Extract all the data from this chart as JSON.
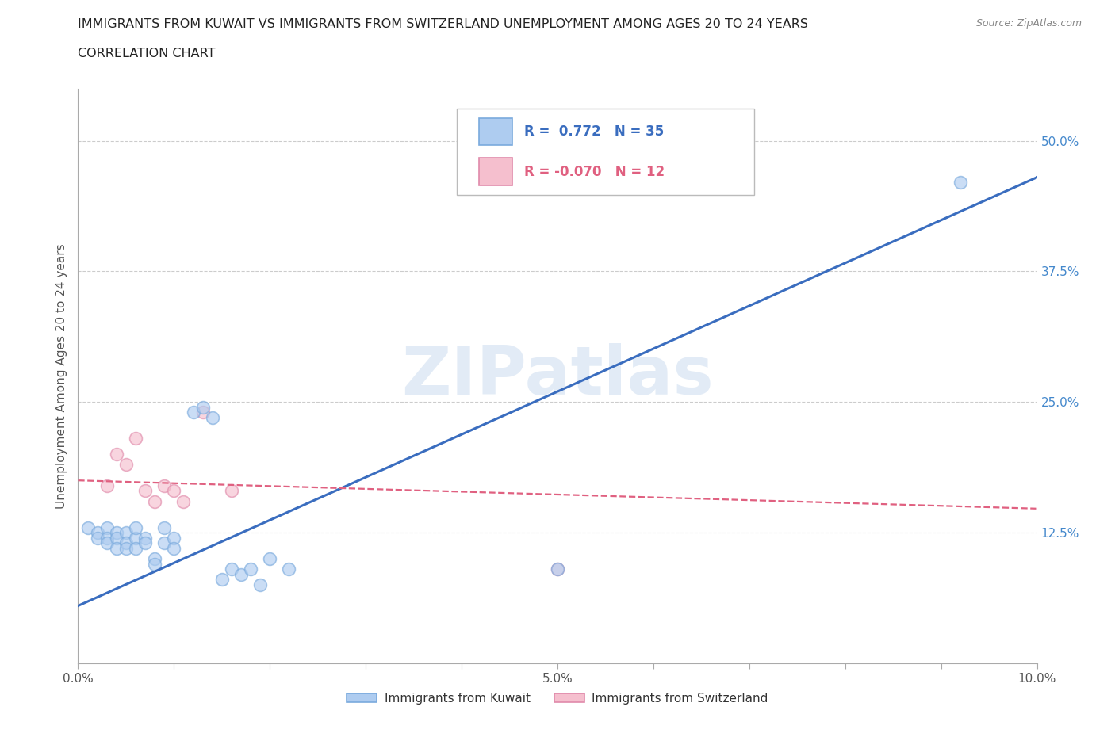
{
  "title_line1": "IMMIGRANTS FROM KUWAIT VS IMMIGRANTS FROM SWITZERLAND UNEMPLOYMENT AMONG AGES 20 TO 24 YEARS",
  "title_line2": "CORRELATION CHART",
  "source": "Source: ZipAtlas.com",
  "ylabel": "Unemployment Among Ages 20 to 24 years",
  "xlim": [
    0.0,
    0.1
  ],
  "ylim": [
    0.0,
    0.55
  ],
  "xticks": [
    0.0,
    0.01,
    0.02,
    0.03,
    0.04,
    0.05,
    0.06,
    0.07,
    0.08,
    0.09,
    0.1
  ],
  "yticks": [
    0.0,
    0.125,
    0.25,
    0.375,
    0.5
  ],
  "ytick_labels": [
    "",
    "12.5%",
    "25.0%",
    "37.5%",
    "50.0%"
  ],
  "xtick_labels": [
    "0.0%",
    "",
    "",
    "",
    "",
    "5.0%",
    "",
    "",
    "",
    "",
    "10.0%"
  ],
  "kuwait_color": "#aeccf0",
  "kuwait_edge_color": "#7aaadd",
  "switzerland_color": "#f5bfce",
  "switzerland_edge_color": "#e08aaa",
  "kuwait_line_color": "#3a6dbf",
  "switzerland_line_color": "#e06080",
  "r_kuwait": 0.772,
  "n_kuwait": 35,
  "r_switzerland": -0.07,
  "n_switzerland": 12,
  "watermark": "ZIPatlas",
  "kuwait_scatter_x": [
    0.001,
    0.002,
    0.002,
    0.003,
    0.003,
    0.003,
    0.004,
    0.004,
    0.004,
    0.005,
    0.005,
    0.005,
    0.006,
    0.006,
    0.006,
    0.007,
    0.007,
    0.008,
    0.008,
    0.009,
    0.009,
    0.01,
    0.01,
    0.012,
    0.013,
    0.014,
    0.015,
    0.016,
    0.017,
    0.018,
    0.019,
    0.02,
    0.022,
    0.05,
    0.092
  ],
  "kuwait_scatter_y": [
    0.13,
    0.125,
    0.12,
    0.13,
    0.12,
    0.115,
    0.125,
    0.12,
    0.11,
    0.125,
    0.115,
    0.11,
    0.12,
    0.11,
    0.13,
    0.12,
    0.115,
    0.1,
    0.095,
    0.13,
    0.115,
    0.12,
    0.11,
    0.24,
    0.245,
    0.235,
    0.08,
    0.09,
    0.085,
    0.09,
    0.075,
    0.1,
    0.09,
    0.09,
    0.46
  ],
  "switzerland_scatter_x": [
    0.003,
    0.004,
    0.005,
    0.006,
    0.007,
    0.008,
    0.009,
    0.01,
    0.011,
    0.013,
    0.016,
    0.05
  ],
  "switzerland_scatter_y": [
    0.17,
    0.2,
    0.19,
    0.215,
    0.165,
    0.155,
    0.17,
    0.165,
    0.155,
    0.24,
    0.165,
    0.09
  ],
  "kuwait_trend_x": [
    0.0,
    0.1
  ],
  "kuwait_trend_y": [
    0.055,
    0.465
  ],
  "switzerland_trend_x": [
    0.0,
    0.1
  ],
  "switzerland_trend_y": [
    0.175,
    0.148
  ],
  "background_color": "#ffffff",
  "grid_color": "#cccccc",
  "title_color": "#222222",
  "axis_color": "#aaaaaa",
  "scatter_size": 130,
  "scatter_alpha": 0.65,
  "scatter_lw": 1.2
}
